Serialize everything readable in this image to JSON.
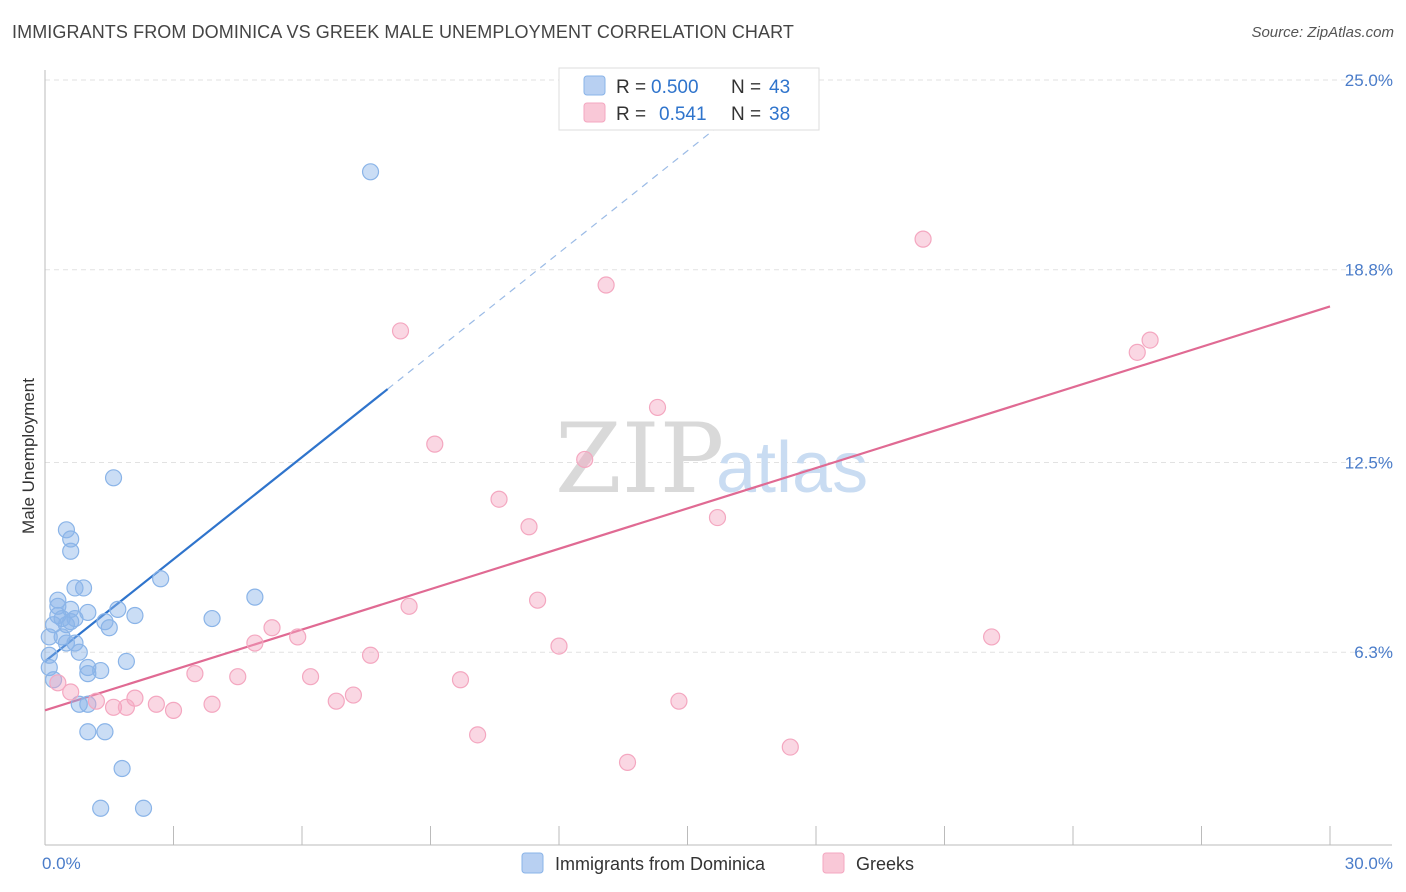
{
  "chart_data": {
    "type": "scatter",
    "title": "IMMIGRANTS FROM DOMINICA VS GREEK MALE UNEMPLOYMENT CORRELATION CHART",
    "source": "Source: ZipAtlas.com",
    "xlabel": "",
    "ylabel": "Male Unemployment",
    "xlim": [
      0,
      30
    ],
    "ylim": [
      0,
      25
    ],
    "x_tick_labels": [
      "0.0%",
      "30.0%"
    ],
    "y_ticks": [
      6.3,
      12.5,
      18.8,
      25.0
    ],
    "y_tick_labels": [
      "6.3%",
      "12.5%",
      "18.8%",
      "25.0%"
    ],
    "grid": true,
    "watermark": {
      "zip": "ZIP",
      "atlas": "atlas"
    },
    "legend_top": [
      {
        "r_label": "R =",
        "r_value": "0.500",
        "n_label": "N =",
        "n_value": "43"
      },
      {
        "r_label": "R =",
        "r_value": "0.541",
        "n_label": "N =",
        "n_value": "38"
      }
    ],
    "series": [
      {
        "name": "Immigrants from Dominica",
        "color": "#8ab4e8",
        "line_color": "#2f74cc",
        "trend": {
          "x0": 0.0,
          "y0": 6.0,
          "x1": 8.0,
          "y1": 14.9,
          "dash_to_x": 16.0,
          "dash_to_y": 23.8
        },
        "points": [
          [
            7.6,
            22.0
          ],
          [
            1.6,
            12.0
          ],
          [
            0.5,
            10.3
          ],
          [
            0.6,
            10.0
          ],
          [
            0.6,
            9.6
          ],
          [
            2.7,
            8.7
          ],
          [
            0.7,
            8.4
          ],
          [
            0.9,
            8.4
          ],
          [
            4.9,
            8.1
          ],
          [
            0.3,
            8.0
          ],
          [
            0.3,
            7.8
          ],
          [
            0.6,
            7.7
          ],
          [
            1.0,
            7.6
          ],
          [
            1.7,
            7.7
          ],
          [
            2.1,
            7.5
          ],
          [
            0.3,
            7.5
          ],
          [
            0.4,
            7.4
          ],
          [
            0.6,
            7.3
          ],
          [
            0.7,
            7.4
          ],
          [
            3.9,
            7.4
          ],
          [
            0.2,
            7.2
          ],
          [
            0.5,
            7.2
          ],
          [
            1.4,
            7.3
          ],
          [
            1.5,
            7.1
          ],
          [
            0.1,
            6.8
          ],
          [
            0.4,
            6.8
          ],
          [
            0.5,
            6.6
          ],
          [
            0.7,
            6.6
          ],
          [
            0.8,
            6.3
          ],
          [
            0.1,
            6.2
          ],
          [
            1.9,
            6.0
          ],
          [
            0.1,
            5.8
          ],
          [
            1.0,
            5.8
          ],
          [
            1.0,
            5.6
          ],
          [
            1.3,
            5.7
          ],
          [
            0.2,
            5.4
          ],
          [
            0.8,
            4.6
          ],
          [
            1.0,
            4.6
          ],
          [
            1.0,
            3.7
          ],
          [
            1.4,
            3.7
          ],
          [
            1.8,
            2.5
          ],
          [
            1.3,
            1.2
          ],
          [
            2.3,
            1.2
          ]
        ]
      },
      {
        "name": "Greeks",
        "color": "#f4a7c0",
        "line_color": "#e06a93",
        "trend": {
          "x0": 0.0,
          "y0": 4.4,
          "x1": 30.0,
          "y1": 17.6
        },
        "points": [
          [
            0.3,
            5.3
          ],
          [
            20.5,
            19.8
          ],
          [
            13.1,
            18.3
          ],
          [
            25.8,
            16.5
          ],
          [
            25.5,
            16.1
          ],
          [
            8.3,
            16.8
          ],
          [
            14.3,
            14.3
          ],
          [
            9.1,
            13.1
          ],
          [
            12.6,
            12.6
          ],
          [
            10.6,
            11.3
          ],
          [
            11.3,
            10.4
          ],
          [
            15.7,
            10.7
          ],
          [
            11.5,
            8.0
          ],
          [
            8.5,
            7.8
          ],
          [
            5.3,
            7.1
          ],
          [
            5.9,
            6.8
          ],
          [
            4.9,
            6.6
          ],
          [
            22.1,
            6.8
          ],
          [
            12.0,
            6.5
          ],
          [
            7.6,
            6.2
          ],
          [
            3.5,
            5.6
          ],
          [
            4.5,
            5.5
          ],
          [
            6.2,
            5.5
          ],
          [
            9.7,
            5.4
          ],
          [
            7.2,
            4.9
          ],
          [
            2.1,
            4.8
          ],
          [
            6.8,
            4.7
          ],
          [
            14.8,
            4.7
          ],
          [
            1.2,
            4.7
          ],
          [
            1.6,
            4.5
          ],
          [
            2.6,
            4.6
          ],
          [
            3.9,
            4.6
          ],
          [
            3.0,
            4.4
          ],
          [
            10.1,
            3.6
          ],
          [
            17.4,
            3.2
          ],
          [
            13.6,
            2.7
          ],
          [
            0.6,
            5.0
          ],
          [
            1.9,
            4.5
          ]
        ]
      }
    ]
  }
}
